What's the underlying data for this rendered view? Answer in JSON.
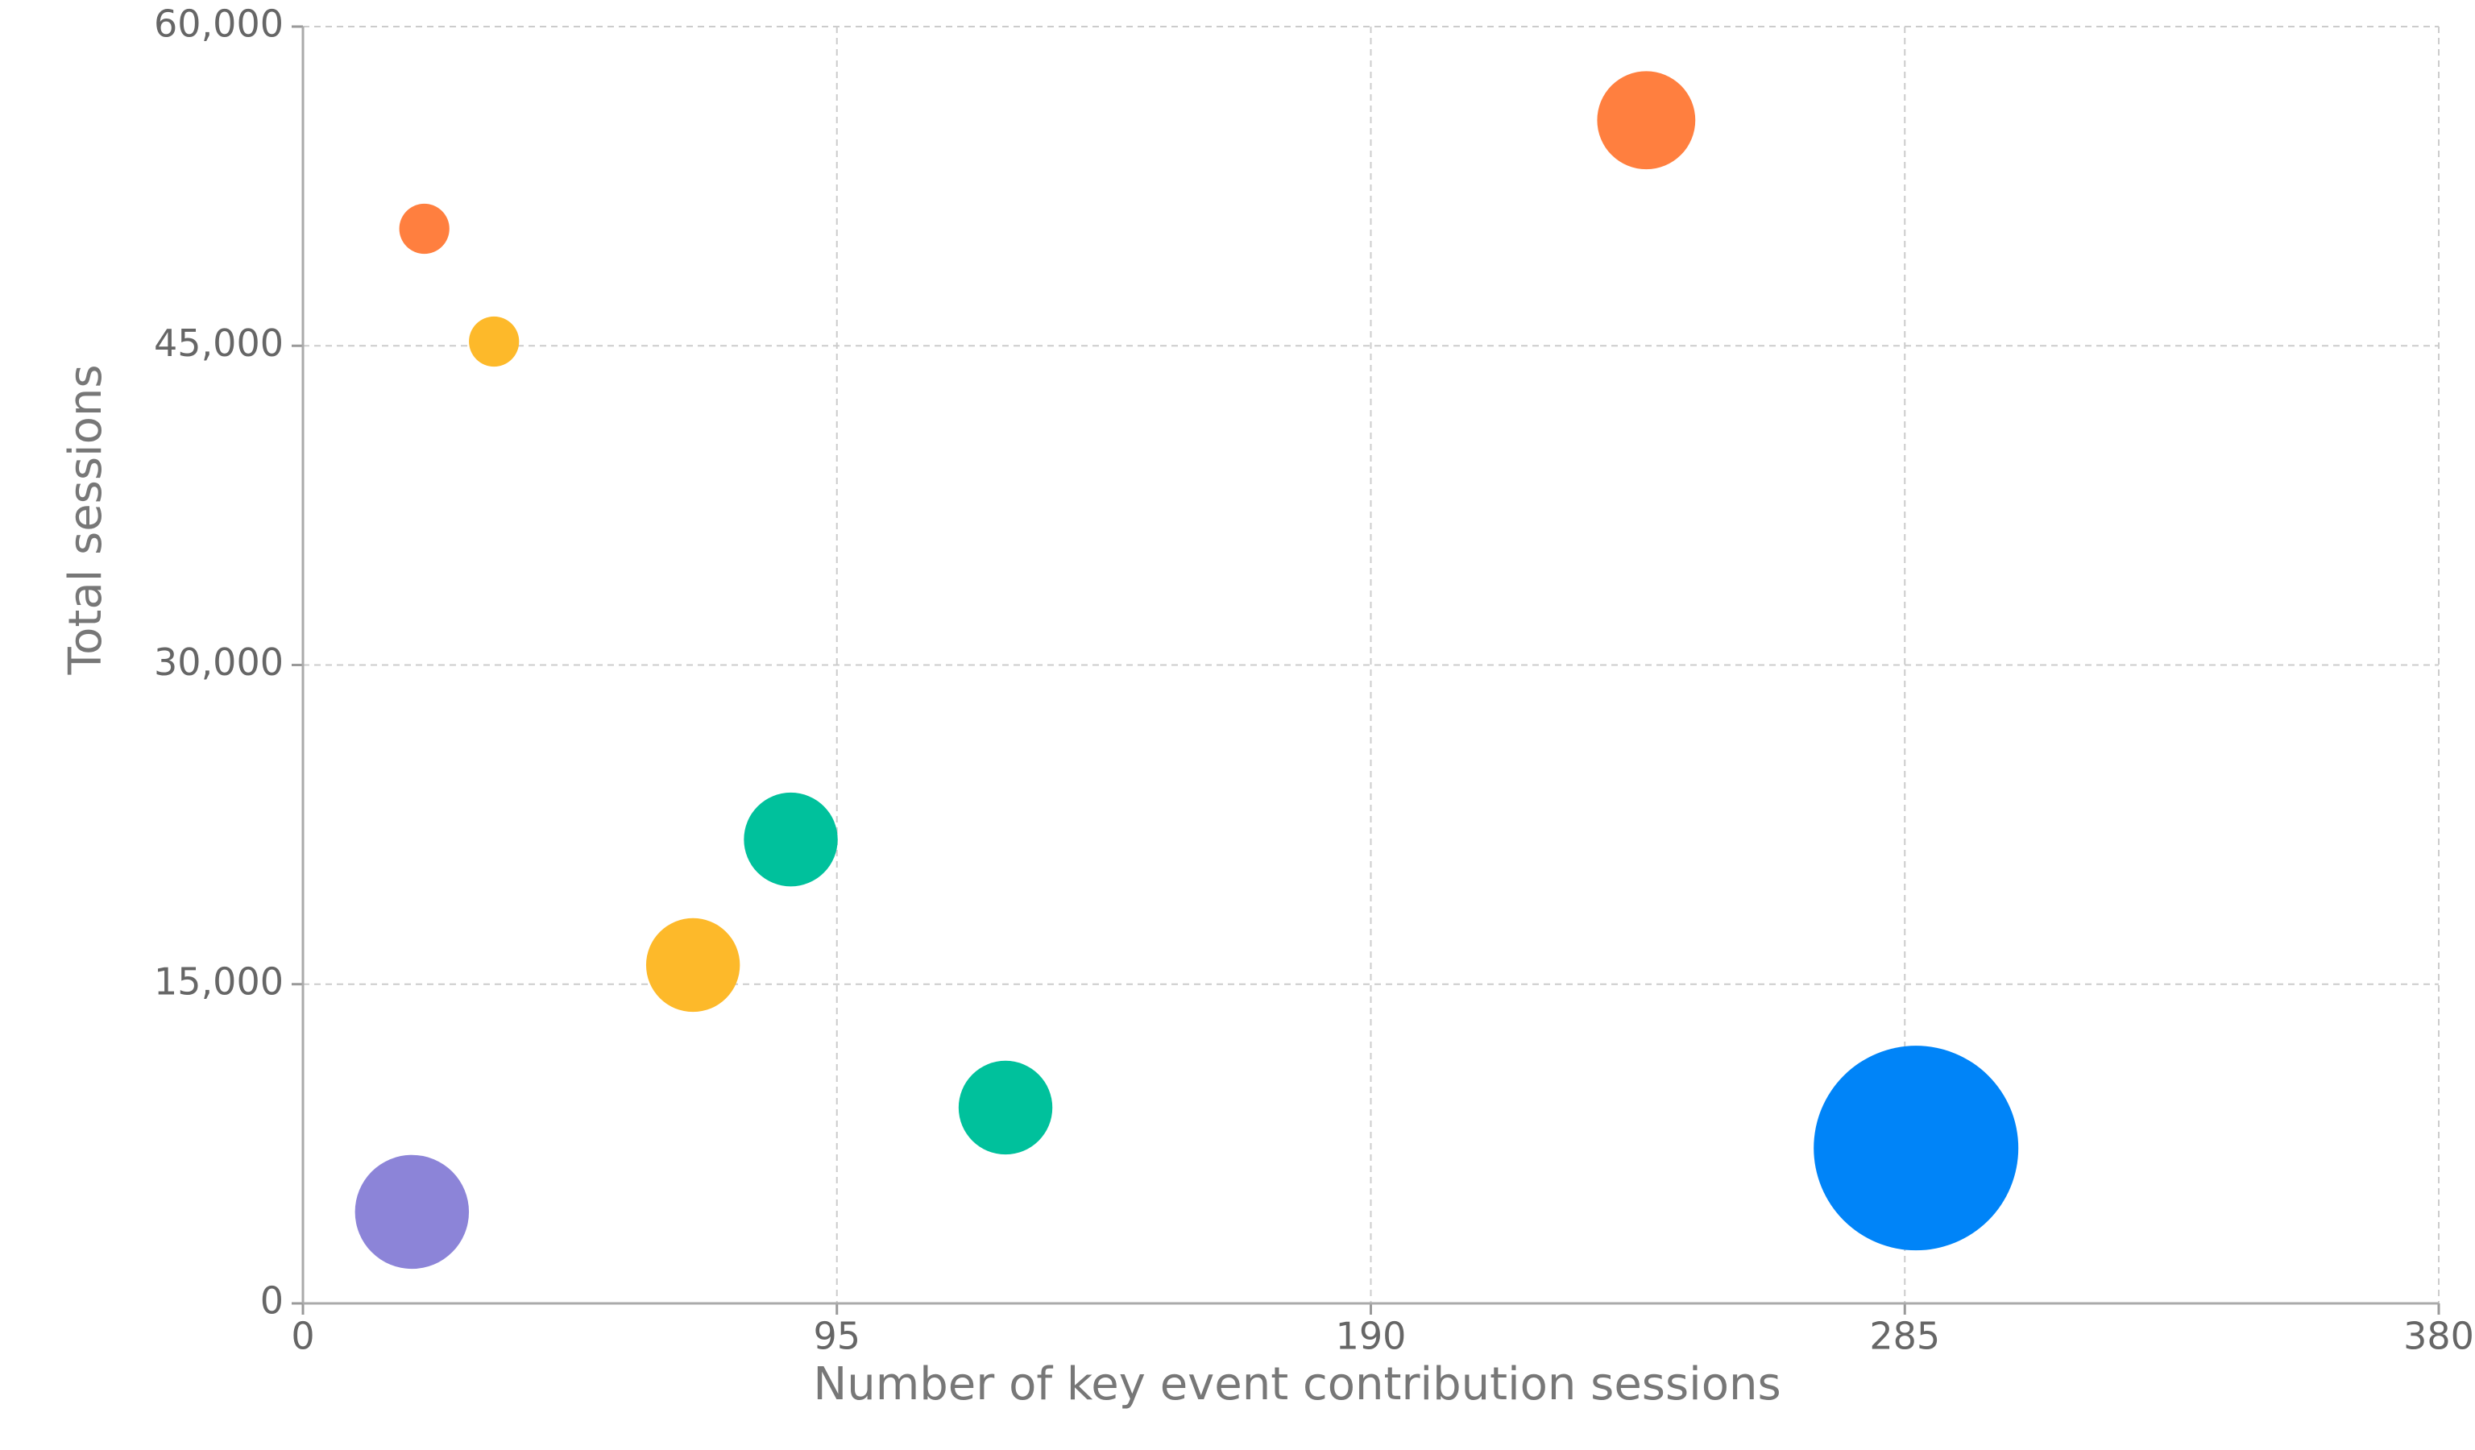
{
  "chart_data": {
    "type": "bubble",
    "x_label": "Number of key event contribution sessions",
    "y_label": "Total sessions",
    "xlim": [
      0,
      380
    ],
    "xticks": [
      0,
      95,
      190,
      285,
      380
    ],
    "ylim": [
      0,
      60000
    ],
    "yticks": [
      0,
      {
        "value": 15000,
        "label": "15,000"
      },
      {
        "value": 30000,
        "label": "30,000"
      },
      {
        "value": 45000,
        "label": "45,000"
      },
      {
        "value": 60000,
        "label": "60,000"
      }
    ],
    "grid": true,
    "points": [
      {
        "x": 21.6,
        "y": 50500,
        "size": 6,
        "color": "#ff7f3f"
      },
      {
        "x": 34,
        "y": 45200,
        "size": 6,
        "color": "#fdb92a"
      },
      {
        "x": 239,
        "y": 55600,
        "size": 23,
        "color": "#ff7f3f"
      },
      {
        "x": 86.8,
        "y": 21800,
        "size": 21,
        "color": "#00c19c"
      },
      {
        "x": 69.4,
        "y": 15900,
        "size": 21,
        "color": "#fdb92a"
      },
      {
        "x": 125,
        "y": 9200,
        "size": 21,
        "color": "#00c19c"
      },
      {
        "x": 19.4,
        "y": 4300,
        "size": 31,
        "color": "#8c84d8"
      },
      {
        "x": 287,
        "y": 7300,
        "size": 100,
        "color": "#0084f8"
      }
    ]
  }
}
